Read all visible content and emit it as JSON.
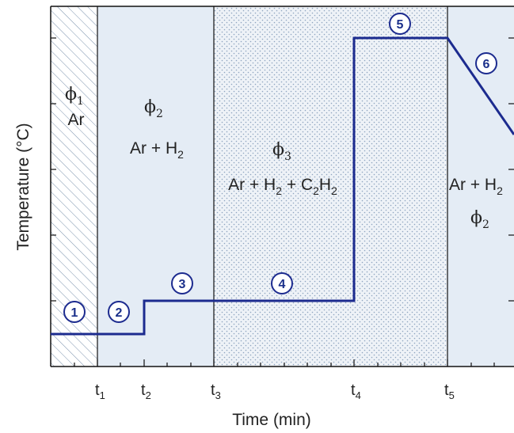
{
  "figure": {
    "y_axis_label": "Temperature (°C)",
    "x_axis_label": "Time (min)",
    "colors": {
      "temperature_line": "#1c2b8f",
      "phase_fill": "#e4ecf5",
      "hatch": "#7c93ad",
      "dots": "#8ea4bf",
      "step_circle": "#1c2b8f",
      "axes": "#111111"
    },
    "time_ticks": [
      {
        "name": "t",
        "sub": "1"
      },
      {
        "name": "t",
        "sub": "2"
      },
      {
        "name": "t",
        "sub": "3"
      },
      {
        "name": "t",
        "sub": "4"
      },
      {
        "name": "t",
        "sub": "5"
      }
    ],
    "phases": [
      {
        "symbol": "ϕ",
        "sub": "1",
        "gas": [
          {
            "t": "Ar"
          }
        ],
        "pattern": "hatched"
      },
      {
        "symbol": "ϕ",
        "sub": "2",
        "gas": [
          {
            "t": "Ar + H"
          },
          {
            "t": "2",
            "sub": true
          }
        ],
        "pattern": "plain"
      },
      {
        "symbol": "ϕ",
        "sub": "3",
        "gas": [
          {
            "t": "Ar + H"
          },
          {
            "t": "2",
            "sub": true
          },
          {
            "t": " + C"
          },
          {
            "t": "2",
            "sub": true
          },
          {
            "t": "H"
          },
          {
            "t": "2",
            "sub": true
          }
        ],
        "pattern": "dotted"
      },
      {
        "symbol": "ϕ",
        "sub": "2",
        "gas": [
          {
            "t": "Ar + H"
          },
          {
            "t": "2",
            "sub": true
          }
        ],
        "pattern": "plain"
      }
    ],
    "steps": [
      "1",
      "2",
      "3",
      "4",
      "5",
      "6"
    ]
  }
}
